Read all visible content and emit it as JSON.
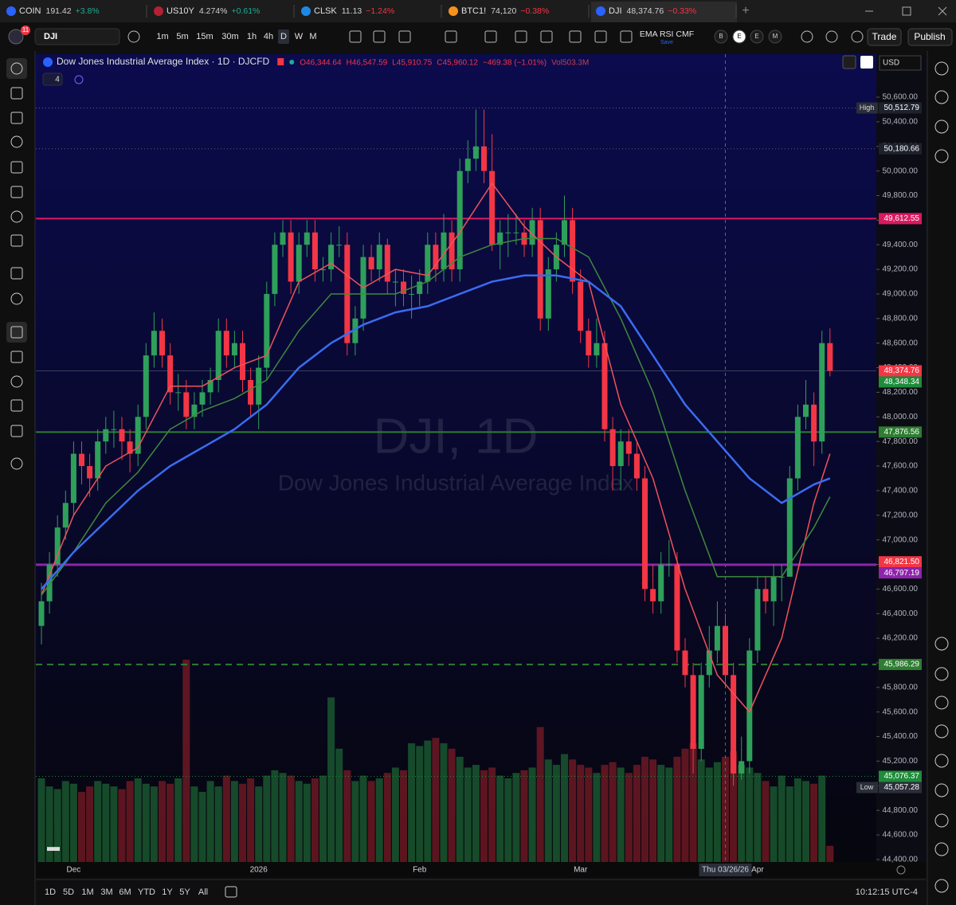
{
  "tabs": [
    {
      "symbol": "COIN",
      "price": "191.42",
      "change": "+3.8%"
    },
    {
      "symbol": "US10Y",
      "price": "4.274%",
      "change": "+0.61%"
    },
    {
      "symbol": "CLSK",
      "price": "11.13",
      "change": "−1.24%"
    },
    {
      "symbol": "BTC1!",
      "price": "74,120",
      "change": "−0.38%"
    },
    {
      "symbol": "DJI",
      "price": "48,374.76",
      "change": "−0.33%"
    }
  ],
  "toolbar": {
    "badge": "11",
    "symbol": "DJI",
    "intervals": [
      "1m",
      "5m",
      "15m",
      "30m",
      "1h",
      "4h",
      "D",
      "W",
      "M"
    ],
    "indicators": "EMA RSI CMF",
    "save": "Save",
    "letters": [
      "B",
      "E",
      "E",
      "M"
    ],
    "trade": "Trade",
    "publish": "Publish"
  },
  "legend": {
    "title": "Dow Jones Industrial Average Index · 1D · DJCFD",
    "open": "O46,344.64",
    "high": "H46,547.59",
    "low": "L45,910.75",
    "close": "C45,960.12",
    "change": "−469.38 (−1.01%)",
    "volume": "Vol503.3M",
    "collapsed_count": "4"
  },
  "currency": "USD",
  "watermark": {
    "symbol": "DJI, 1D",
    "name": "Dow Jones Industrial Average Index"
  },
  "chart_data": {
    "type": "candlestick",
    "ylim": [
      44380,
      50950
    ],
    "yticks": [
      {
        "value": 50600,
        "label": "50,600.00"
      },
      {
        "value": 50400,
        "label": "50,400.00"
      },
      {
        "value": 50200,
        "label": "50,200.00"
      },
      {
        "value": 50000,
        "label": "50,000.00"
      },
      {
        "value": 49800,
        "label": "49,800.00"
      },
      {
        "value": 49600,
        "label": "49,600.00"
      },
      {
        "value": 49400,
        "label": "49,400.00"
      },
      {
        "value": 49200,
        "label": "49,200.00"
      },
      {
        "value": 49000,
        "label": "49,000.00"
      },
      {
        "value": 48800,
        "label": "48,800.00"
      },
      {
        "value": 48600,
        "label": "48,600.00"
      },
      {
        "value": 48400,
        "label": "48,400.00"
      },
      {
        "value": 48200,
        "label": "48,200.00"
      },
      {
        "value": 48000,
        "label": "48,000.00"
      },
      {
        "value": 47800,
        "label": "47,800.00"
      },
      {
        "value": 47600,
        "label": "47,600.00"
      },
      {
        "value": 47400,
        "label": "47,400.00"
      },
      {
        "value": 47200,
        "label": "47,200.00"
      },
      {
        "value": 47000,
        "label": "47,000.00"
      },
      {
        "value": 46800,
        "label": "46,800.00"
      },
      {
        "value": 46600,
        "label": "46,600.00"
      },
      {
        "value": 46400,
        "label": "46,400.00"
      },
      {
        "value": 46200,
        "label": "46,200.00"
      },
      {
        "value": 46000,
        "label": "46,000.00"
      },
      {
        "value": 45800,
        "label": "45,800.00"
      },
      {
        "value": 45600,
        "label": "45,600.00"
      },
      {
        "value": 45400,
        "label": "45,400.00"
      },
      {
        "value": 45200,
        "label": "45,200.00"
      },
      {
        "value": 45000,
        "label": "45,000.00"
      },
      {
        "value": 44800,
        "label": "44,800.00"
      },
      {
        "value": 44600,
        "label": "44,600.00"
      },
      {
        "value": 44400,
        "label": "44,400.00"
      }
    ],
    "candles": [
      [
        46300,
        46650,
        46150,
        46500
      ],
      [
        46500,
        46900,
        46400,
        46800
      ],
      [
        46800,
        47200,
        46700,
        47100
      ],
      [
        47100,
        47400,
        47000,
        47300
      ],
      [
        47300,
        47800,
        47200,
        47700
      ],
      [
        47700,
        47800,
        47450,
        47600
      ],
      [
        47600,
        47700,
        47350,
        47500
      ],
      [
        47500,
        47900,
        47400,
        47800
      ],
      [
        47800,
        48000,
        47700,
        47900
      ],
      [
        47900,
        48050,
        47750,
        47900
      ],
      [
        47900,
        48000,
        47650,
        47800
      ],
      [
        47800,
        47900,
        47550,
        47700
      ],
      [
        47700,
        48100,
        47600,
        48000
      ],
      [
        48000,
        48600,
        47900,
        48500
      ],
      [
        48500,
        48850,
        48400,
        48700
      ],
      [
        48700,
        48800,
        48400,
        48500
      ],
      [
        48500,
        48600,
        48100,
        48200
      ],
      [
        48200,
        48350,
        48050,
        48200
      ],
      [
        48200,
        48300,
        47900,
        48000
      ],
      [
        48000,
        48200,
        47900,
        48100
      ],
      [
        48100,
        48300,
        48000,
        48200
      ],
      [
        48200,
        48400,
        48100,
        48300
      ],
      [
        48300,
        48800,
        48200,
        48700
      ],
      [
        48700,
        48800,
        48400,
        48500
      ],
      [
        48500,
        48700,
        48400,
        48600
      ],
      [
        48600,
        48700,
        48200,
        48300
      ],
      [
        48300,
        48400,
        48000,
        48100
      ],
      [
        48100,
        48500,
        47900,
        48400
      ],
      [
        48400,
        49100,
        48300,
        49000
      ],
      [
        49000,
        49500,
        48900,
        49400
      ],
      [
        49400,
        49600,
        49300,
        49500
      ],
      [
        49500,
        49600,
        49000,
        49100
      ],
      [
        49100,
        49500,
        49000,
        49400
      ],
      [
        49400,
        49600,
        49300,
        49500
      ],
      [
        49500,
        49600,
        49100,
        49200
      ],
      [
        49200,
        49300,
        49100,
        49200
      ],
      [
        49200,
        49500,
        49100,
        49400
      ],
      [
        49400,
        49550,
        49300,
        49400
      ],
      [
        49400,
        49500,
        48500,
        48600
      ],
      [
        48600,
        48900,
        48500,
        48800
      ],
      [
        48800,
        49400,
        48700,
        49300
      ],
      [
        49300,
        49400,
        49100,
        49200
      ],
      [
        49200,
        49500,
        49100,
        49400
      ],
      [
        49400,
        49450,
        49000,
        49100
      ],
      [
        49100,
        49200,
        48900,
        49100
      ],
      [
        49100,
        49200,
        48900,
        49000
      ],
      [
        49000,
        49150,
        48800,
        49000
      ],
      [
        49000,
        49200,
        48900,
        49100
      ],
      [
        49100,
        49500,
        49000,
        49400
      ],
      [
        49400,
        49500,
        49100,
        49200
      ],
      [
        49200,
        49650,
        49100,
        49500
      ],
      [
        49500,
        49600,
        49100,
        49200
      ],
      [
        49200,
        50100,
        49100,
        50000
      ],
      [
        50000,
        50250,
        49900,
        50100
      ],
      [
        50100,
        50500,
        50000,
        50200
      ],
      [
        50200,
        50500,
        49900,
        50000
      ],
      [
        50000,
        50300,
        49350,
        49400
      ],
      [
        49400,
        49600,
        49200,
        49500
      ],
      [
        49500,
        49650,
        49300,
        49500
      ],
      [
        49500,
        49650,
        49400,
        49500
      ],
      [
        49500,
        49600,
        49300,
        49400
      ],
      [
        49400,
        49700,
        49300,
        49600
      ],
      [
        49600,
        49700,
        48700,
        48800
      ],
      [
        48800,
        49300,
        48700,
        49200
      ],
      [
        49200,
        49500,
        49100,
        49400
      ],
      [
        49400,
        49800,
        49300,
        49600
      ],
      [
        49600,
        49700,
        49000,
        49100
      ],
      [
        49100,
        49200,
        48600,
        48700
      ],
      [
        48700,
        48800,
        48400,
        48500
      ],
      [
        48500,
        48800,
        48400,
        48600
      ],
      [
        48600,
        48700,
        47800,
        47900
      ],
      [
        47900,
        48000,
        47400,
        47600
      ],
      [
        47600,
        47900,
        47400,
        47800
      ],
      [
        47800,
        47900,
        47600,
        47700
      ],
      [
        47700,
        47800,
        47400,
        47500
      ],
      [
        47500,
        47600,
        46500,
        46600
      ],
      [
        46600,
        46800,
        46400,
        46500
      ],
      [
        46500,
        46900,
        46400,
        46800
      ],
      [
        46800,
        47000,
        46700,
        46800
      ],
      [
        46800,
        46900,
        46000,
        46100
      ],
      [
        46100,
        46200,
        45800,
        45900
      ],
      [
        45900,
        46000,
        45100,
        45300
      ],
      [
        45300,
        46000,
        45200,
        45900
      ],
      [
        45900,
        46300,
        45800,
        46100
      ],
      [
        46100,
        46500,
        46000,
        46300
      ],
      [
        46300,
        46400,
        45800,
        45900
      ],
      [
        45900,
        46000,
        45000,
        45100
      ],
      [
        45100,
        45400,
        45050,
        45200
      ],
      [
        45200,
        46200,
        45100,
        46100
      ],
      [
        46100,
        46700,
        46000,
        46600
      ],
      [
        46600,
        46700,
        46400,
        46500
      ],
      [
        46500,
        46800,
        46300,
        46700
      ],
      [
        46700,
        46800,
        46500,
        46700
      ],
      [
        46700,
        47600,
        46700,
        47500
      ],
      [
        47500,
        48100,
        47400,
        48000
      ],
      [
        48000,
        48300,
        47900,
        48100
      ],
      [
        48100,
        48200,
        47600,
        47800
      ],
      [
        47800,
        48700,
        47700,
        48600
      ],
      [
        48600,
        48720,
        48330,
        48374.76
      ]
    ],
    "volume": [
      620,
      560,
      540,
      600,
      580,
      520,
      560,
      600,
      580,
      560,
      540,
      600,
      620,
      580,
      560,
      600,
      580,
      620,
      1500,
      560,
      520,
      600,
      560,
      640,
      600,
      580,
      620,
      560,
      640,
      680,
      660,
      640,
      600,
      580,
      620,
      640,
      1220,
      840,
      680,
      600,
      640,
      600,
      620,
      660,
      700,
      680,
      880,
      860,
      900,
      920,
      880,
      840,
      780,
      700,
      720,
      680,
      700,
      640,
      620,
      660,
      680,
      700,
      1000,
      760,
      720,
      800,
      760,
      720,
      700,
      660,
      720,
      740,
      700,
      660,
      720,
      780,
      760,
      720,
      700,
      780,
      840,
      880,
      760,
      700,
      740,
      780,
      820,
      720,
      700,
      660,
      600,
      560,
      640,
      560,
      620,
      600,
      580,
      640,
      120
    ],
    "emas": [
      {
        "color": "#f0525a",
        "x": [
          0,
          4,
          8,
          12,
          16,
          20,
          24,
          28,
          32,
          36,
          40,
          44,
          48,
          52,
          56,
          60,
          64,
          68,
          72,
          76,
          80,
          84,
          88,
          92,
          96,
          98
        ],
        "values": [
          46550,
          47200,
          47600,
          47750,
          48250,
          48250,
          48400,
          48500,
          49100,
          49250,
          49050,
          49200,
          49150,
          49500,
          49900,
          49550,
          49300,
          49100,
          48100,
          47500,
          46600,
          45900,
          45600,
          46200,
          47300,
          47700
        ]
      },
      {
        "color": "#3f8a3c",
        "x": [
          0,
          4,
          8,
          12,
          16,
          20,
          24,
          28,
          32,
          36,
          40,
          44,
          48,
          52,
          56,
          60,
          64,
          68,
          72,
          76,
          80,
          84,
          88,
          92,
          96,
          98
        ],
        "values": [
          46550,
          46900,
          47300,
          47550,
          47900,
          48050,
          48150,
          48300,
          48700,
          49000,
          49000,
          49000,
          49100,
          49300,
          49400,
          49450,
          49450,
          49300,
          48800,
          48200,
          47400,
          46700,
          46700,
          46700,
          47100,
          47350
        ]
      },
      {
        "color": "#3a6cf0",
        "x": [
          0,
          4,
          8,
          12,
          16,
          20,
          24,
          28,
          32,
          36,
          40,
          44,
          48,
          52,
          56,
          60,
          64,
          68,
          72,
          76,
          80,
          84,
          88,
          92,
          96,
          98
        ],
        "values": [
          46600,
          46900,
          47150,
          47400,
          47600,
          47750,
          47900,
          48100,
          48400,
          48600,
          48750,
          48850,
          48900,
          49000,
          49100,
          49150,
          49150,
          49100,
          48900,
          48500,
          48100,
          47800,
          47500,
          47300,
          47450,
          47500
        ]
      }
    ],
    "levels": [
      {
        "value": 50512.79,
        "label": "50,512.79",
        "tag": "High",
        "style": "dotted",
        "color": "#5d606b"
      },
      {
        "value": 50180.66,
        "label": "50,180.66",
        "style": "dotted",
        "color": "#5d606b"
      },
      {
        "value": 49612.55,
        "label": "49,612.55",
        "style": "solid",
        "color": "#d81b60"
      },
      {
        "value": 48374.76,
        "label": "48,374.76",
        "style": "thin",
        "color": "#f23645"
      },
      {
        "value": 48348.34,
        "label": "48,348.34",
        "style": "none",
        "color": "#1e8c3a"
      },
      {
        "value": 47876.56,
        "label": "47,876.56",
        "style": "solid",
        "color": "#2e7d32"
      },
      {
        "value": 46821.5,
        "label": "46,821.50",
        "style": "none",
        "color": "#f23645"
      },
      {
        "value": 46797.19,
        "label": "46,797.19",
        "style": "solid",
        "color": "#8e24aa"
      },
      {
        "value": 45986.29,
        "label": "45,986.29",
        "style": "dashed",
        "color": "#2e7d32"
      },
      {
        "value": 45076.37,
        "label": "45,076.37",
        "style": "dotted",
        "color": "#1e8c3a"
      },
      {
        "value": 45057.28,
        "label": "45,057.28",
        "tag": "Low",
        "style": "none",
        "color": "#2a2e39"
      }
    ],
    "time_labels": [
      {
        "index": 4,
        "label": "Dec"
      },
      {
        "index": 27,
        "label": "2026"
      },
      {
        "index": 47,
        "label": "Feb"
      },
      {
        "index": 67,
        "label": "Mar"
      },
      {
        "index": 85,
        "label": "Thu 03/26/26",
        "crosshair": true
      },
      {
        "index": 89,
        "label": "Apr"
      }
    ]
  },
  "range_buttons": [
    "1D",
    "5D",
    "1M",
    "3M",
    "6M",
    "YTD",
    "1Y",
    "5Y",
    "All"
  ],
  "clock": "10:12:15 UTC-4"
}
